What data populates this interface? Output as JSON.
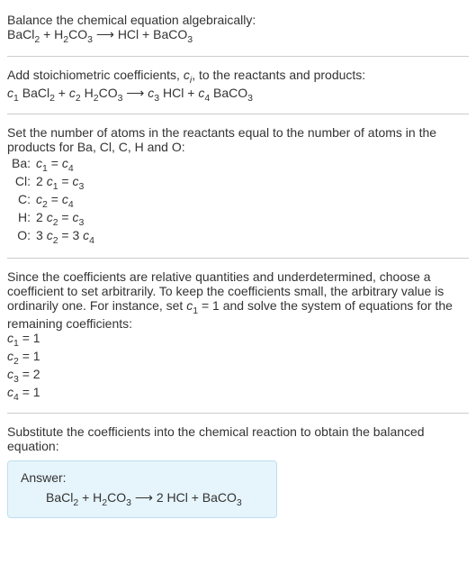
{
  "colors": {
    "text": "#333333",
    "rule": "#cccccc",
    "answer_bg": "#e6f4fb",
    "answer_border": "#bcdff0"
  },
  "fonts": {
    "family": "Arial",
    "size_pt": 14
  },
  "s1": {
    "title": "Balance the chemical equation algebraically:",
    "bacl2": "BaCl",
    "two_a": "2",
    "plus1": " + H",
    "two_b": "2",
    "co": "CO",
    "three_a": "3",
    "arrow": " ⟶ HCl + BaCO",
    "three_b": "3"
  },
  "s2": {
    "line1_a": "Add stoichiometric coefficients, ",
    "ci_c": "c",
    "ci_i": "i",
    "line1_b": ", to the reactants and products:",
    "c1": "c",
    "n1": "1",
    "bacl2": " BaCl",
    "two_a": "2",
    "plus": " + ",
    "c2": "c",
    "n2": "2",
    "h2": " H",
    "two_b": "2",
    "co": "CO",
    "three_a": "3",
    "arrow": " ⟶ ",
    "c3": "c",
    "n3": "3",
    "hcl": " HCl + ",
    "c4": "c",
    "n4": "4",
    "baco3": " BaCO",
    "three_b": "3"
  },
  "s3": {
    "intro": "Set the number of atoms in the reactants equal to the number of atoms in the products for Ba, Cl, C, H and O:",
    "rows": [
      {
        "lbl": "Ba:",
        "lhs_pre": "",
        "c_a": "c",
        "i_a": "1",
        "mid": " = ",
        "c_b": "c",
        "i_b": "4",
        "rhs_post": ""
      },
      {
        "lbl": "Cl:",
        "lhs_pre": "2 ",
        "c_a": "c",
        "i_a": "1",
        "mid": " = ",
        "c_b": "c",
        "i_b": "3",
        "rhs_post": ""
      },
      {
        "lbl": "C:",
        "lhs_pre": "",
        "c_a": "c",
        "i_a": "2",
        "mid": " = ",
        "c_b": "c",
        "i_b": "4",
        "rhs_post": ""
      },
      {
        "lbl": "H:",
        "lhs_pre": "2 ",
        "c_a": "c",
        "i_a": "2",
        "mid": " = ",
        "c_b": "c",
        "i_b": "3",
        "rhs_post": ""
      },
      {
        "lbl": "O:",
        "lhs_pre": "3 ",
        "c_a": "c",
        "i_a": "2",
        "mid": " = 3 ",
        "c_b": "c",
        "i_b": "4",
        "rhs_post": ""
      }
    ]
  },
  "s4": {
    "p_a": "Since the coefficients are relative quantities and underdetermined, choose a coefficient to set arbitrarily. To keep the coefficients small, the arbitrary value is ordinarily one. For instance, set ",
    "c": "c",
    "one": "1",
    "p_b": " = 1 and solve the system of equations for the remaining coefficients:",
    "rows": [
      {
        "c": "c",
        "i": "1",
        "eq": " = 1"
      },
      {
        "c": "c",
        "i": "2",
        "eq": " = 1"
      },
      {
        "c": "c",
        "i": "3",
        "eq": " = 2"
      },
      {
        "c": "c",
        "i": "4",
        "eq": " = 1"
      }
    ]
  },
  "s5": {
    "intro": "Substitute the coefficients into the chemical reaction to obtain the balanced equation:",
    "answer_label": "Answer:",
    "bacl2": "BaCl",
    "two_a": "2",
    "plus": " + H",
    "two_b": "2",
    "co": "CO",
    "three_a": "3",
    "arrow": " ⟶ 2 HCl + BaCO",
    "three_b": "3"
  }
}
